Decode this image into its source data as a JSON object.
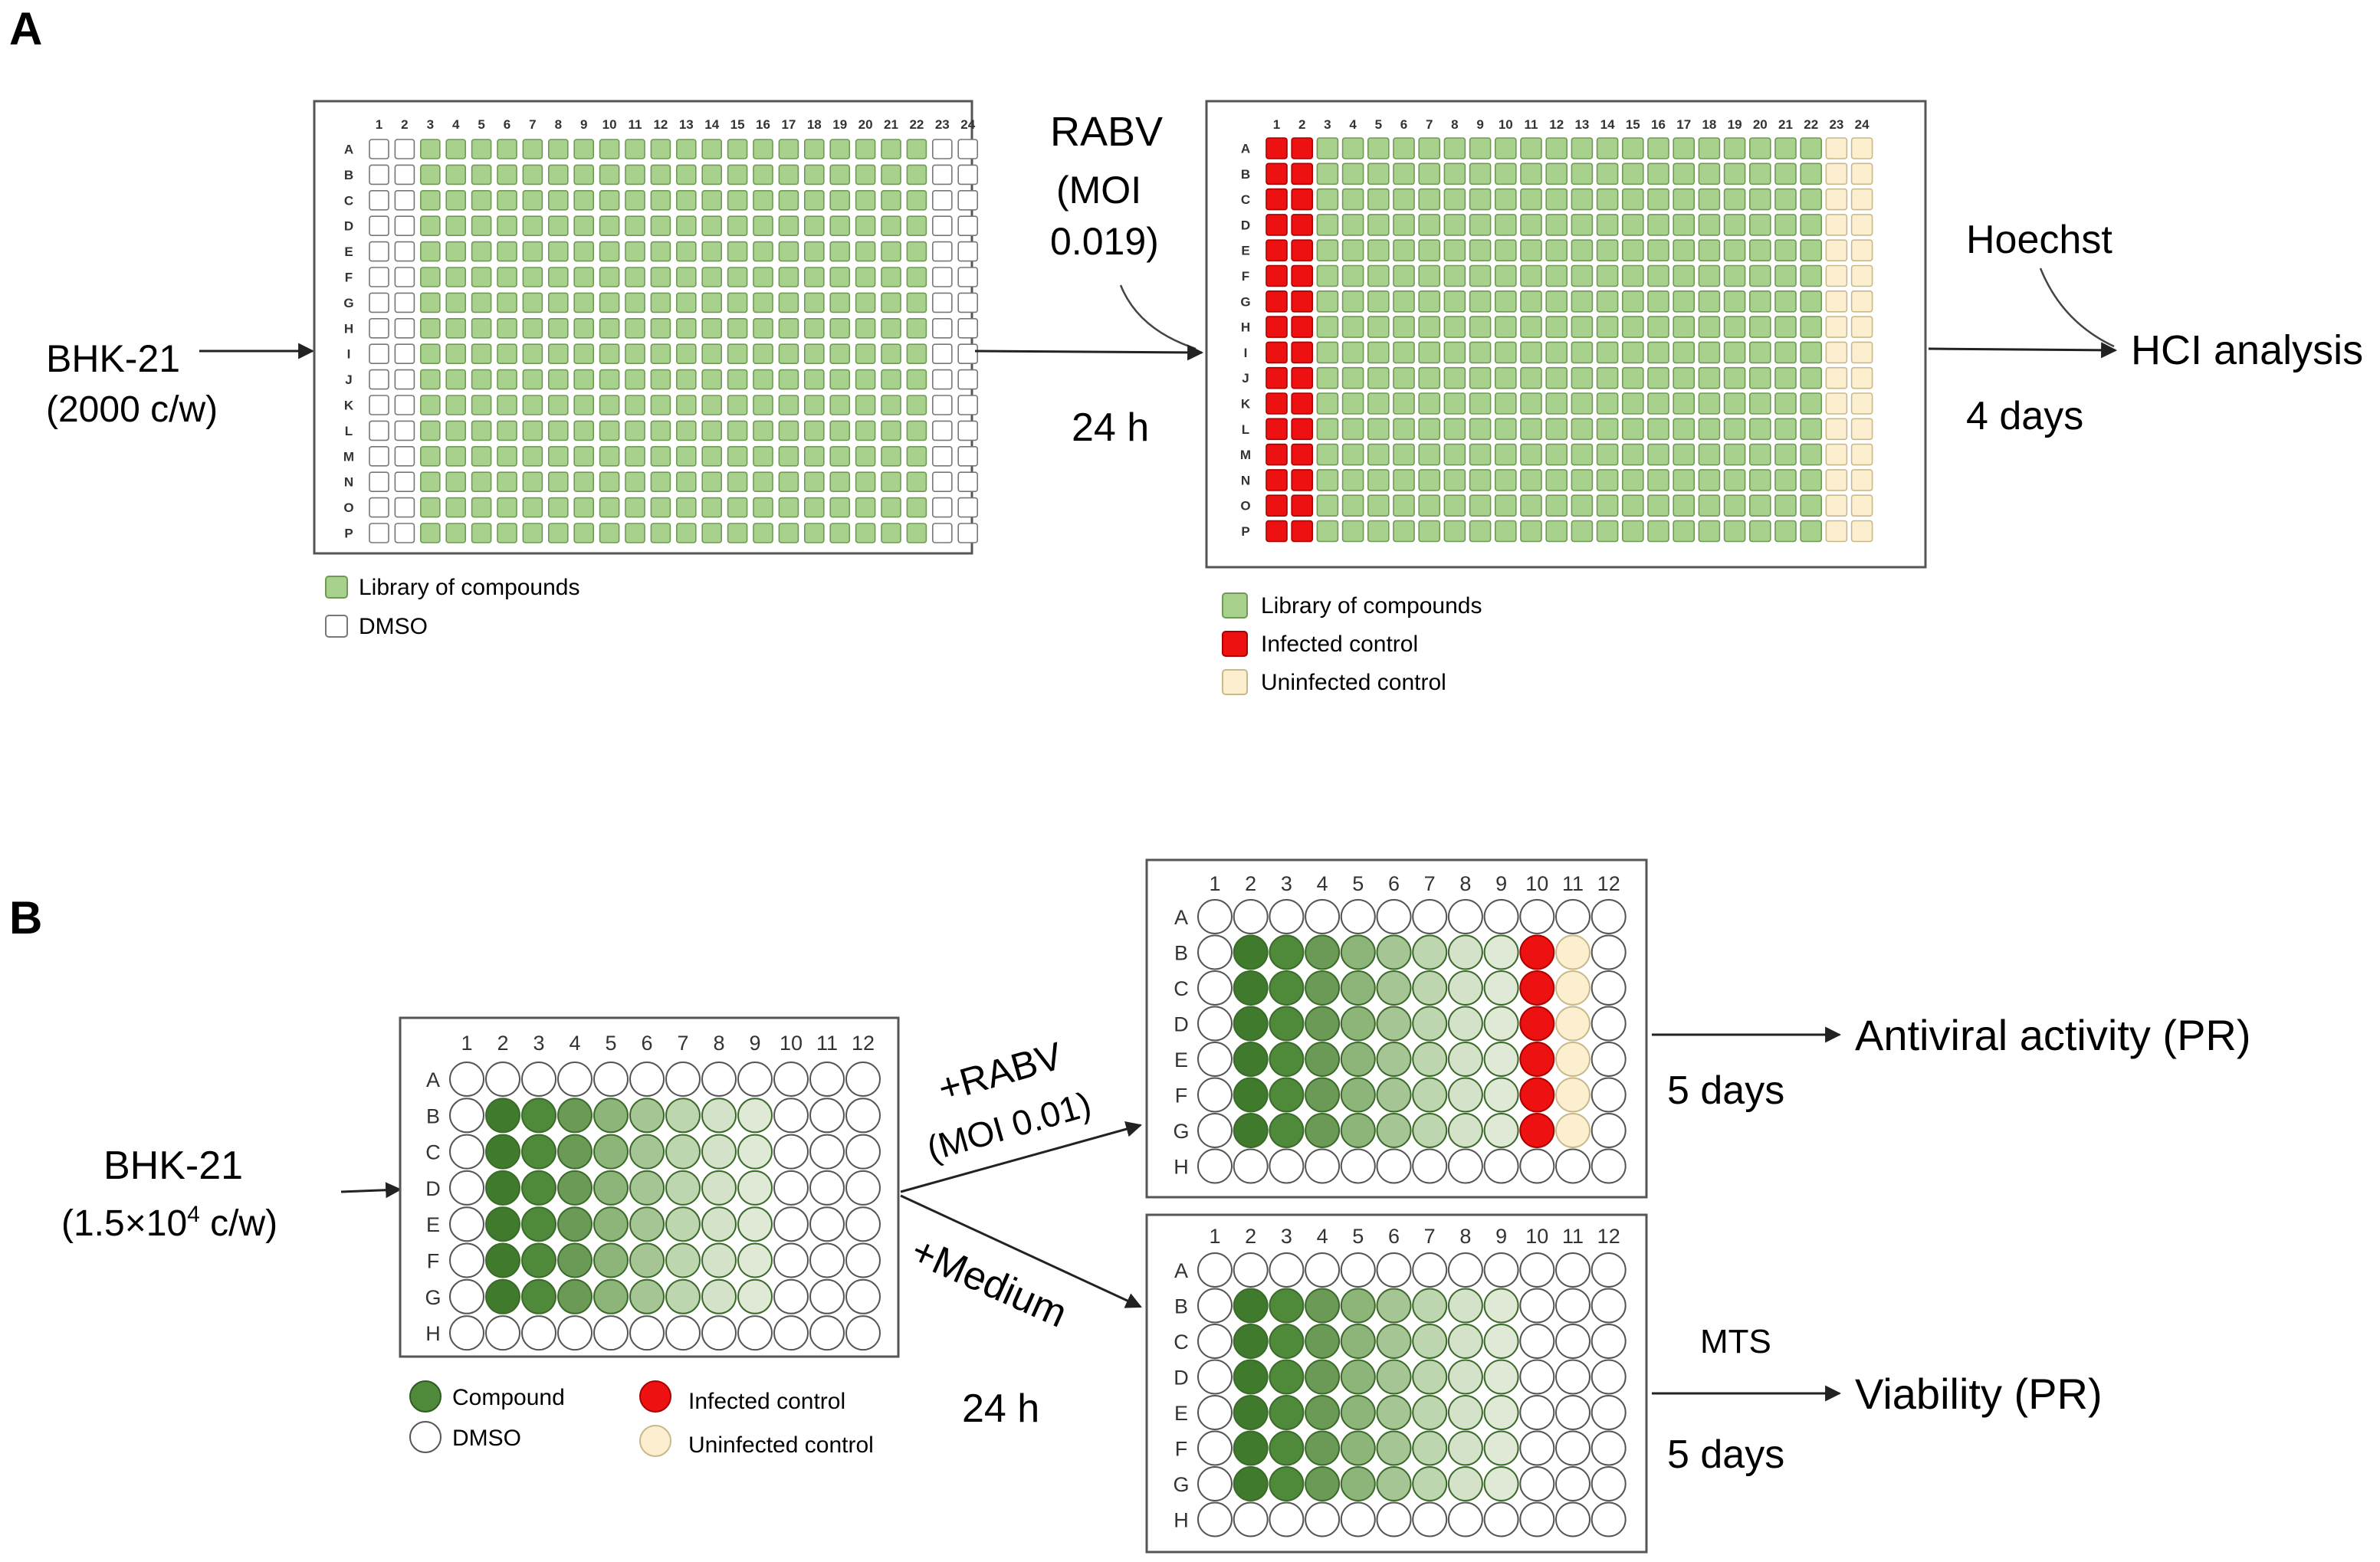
{
  "panel_a": {
    "label": "A",
    "input_cells": "BHK-21",
    "input_density": "(2000 c/w)",
    "plate1": {
      "cols": [
        "1",
        "2",
        "3",
        "4",
        "5",
        "6",
        "7",
        "8",
        "9",
        "10",
        "11",
        "12",
        "13",
        "14",
        "15",
        "16",
        "17",
        "18",
        "19",
        "20",
        "21",
        "22",
        "23",
        "24"
      ],
      "rows": [
        "A",
        "B",
        "C",
        "D",
        "E",
        "F",
        "G",
        "H",
        "I",
        "J",
        "K",
        "L",
        "M",
        "N",
        "O",
        "P"
      ],
      "compound_cols": [
        3,
        22
      ]
    },
    "virus_line1": "RABV",
    "virus_line2": "(MOI",
    "virus_line3": "0.019)",
    "time1": "24 h",
    "plate2": {
      "cols": [
        "1",
        "2",
        "3",
        "4",
        "5",
        "6",
        "7",
        "8",
        "9",
        "10",
        "11",
        "12",
        "13",
        "14",
        "15",
        "16",
        "17",
        "18",
        "19",
        "20",
        "21",
        "22",
        "23",
        "24"
      ],
      "rows": [
        "A",
        "B",
        "C",
        "D",
        "E",
        "F",
        "G",
        "H",
        "I",
        "J",
        "K",
        "L",
        "M",
        "N",
        "O",
        "P"
      ],
      "infected_cols": [
        1,
        2
      ],
      "compound_cols": [
        3,
        22
      ],
      "uninfected_cols": [
        23,
        24
      ]
    },
    "stain": "Hoechst",
    "readout": "HCI analysis",
    "time2": "4 days",
    "legend1": [
      "Library of compounds",
      "DMSO"
    ],
    "legend2": [
      "Library of compounds",
      "Infected control",
      "Uninfected control"
    ]
  },
  "panel_b": {
    "label": "B",
    "input_cells": "BHK-21",
    "input_density_prefix": "(1.5×10",
    "input_density_exp": "4",
    "input_density_suffix": " c/w)",
    "plate": {
      "cols": [
        "1",
        "2",
        "3",
        "4",
        "5",
        "6",
        "7",
        "8",
        "9",
        "10",
        "11",
        "12"
      ],
      "rows": [
        "A",
        "B",
        "C",
        "D",
        "E",
        "F",
        "G",
        "H"
      ],
      "compound_rows": [
        "B",
        "C",
        "D",
        "E",
        "F",
        "G"
      ],
      "compound_shades": [
        "#3f7a2d",
        "#4f8a3a",
        "#6b9a56",
        "#8db57a",
        "#a6c594",
        "#bed6af",
        "#d3e2c8",
        "#dfe9d6"
      ]
    },
    "arrow_up_label1": "+RABV",
    "arrow_up_label2": "(MOI 0.01)",
    "arrow_down_label": "+Medium",
    "time1": "24 h",
    "antiviral_readout": "Antiviral activity (PR)",
    "antiviral_time": "5 days",
    "viability_stain": "MTS",
    "viability_readout": "Viability (PR)",
    "viability_time": "5 days",
    "legend": [
      "Compound",
      "DMSO",
      "Infected control",
      "Uninfected control"
    ]
  },
  "colors": {
    "compound_green": "#a9d18e",
    "compound_green_stroke": "#6f9a54",
    "infected_red": "#ee1111",
    "uninfected_cream": "#fbefcf",
    "dmso_white": "#ffffff"
  }
}
